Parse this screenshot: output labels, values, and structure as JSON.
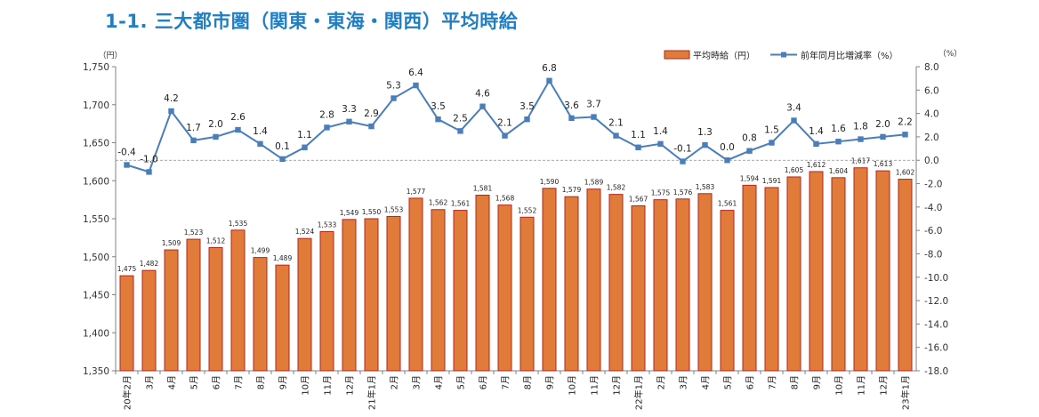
{
  "page_title": "1-1.  三大都市圏（関東・東海・関西）平均時給",
  "chart_data": {
    "type": "bar",
    "categories": [
      "20年2月",
      "3月",
      "4月",
      "5月",
      "6月",
      "7月",
      "8月",
      "9月",
      "10月",
      "11月",
      "12月",
      "21年1月",
      "2月",
      "3月",
      "4月",
      "5月",
      "6月",
      "7月",
      "8月",
      "9月",
      "10月",
      "11月",
      "12月",
      "22年1月",
      "2月",
      "3月",
      "4月",
      "5月",
      "6月",
      "7月",
      "8月",
      "9月",
      "10月",
      "11月",
      "12月",
      "23年1月"
    ],
    "series": [
      {
        "name": "平均時給（円）",
        "type": "bar",
        "axis": "left",
        "color": "#e07b39",
        "values": [
          1475,
          1482,
          1509,
          1523,
          1512,
          1535,
          1499,
          1489,
          1524,
          1533,
          1549,
          1550,
          1553,
          1577,
          1562,
          1561,
          1581,
          1568,
          1552,
          1590,
          1579,
          1589,
          1582,
          1567,
          1575,
          1576,
          1583,
          1561,
          1594,
          1591,
          1605,
          1612,
          1604,
          1617,
          1613,
          1602
        ]
      },
      {
        "name": "前年同月比増減率（%）",
        "type": "line",
        "axis": "right",
        "color": "#4a7ebb",
        "values": [
          -0.4,
          -1.0,
          4.2,
          1.7,
          2.0,
          2.6,
          1.4,
          0.1,
          1.1,
          2.8,
          3.3,
          2.9,
          5.3,
          6.4,
          3.5,
          2.5,
          4.6,
          2.1,
          3.5,
          6.8,
          3.6,
          3.7,
          2.1,
          1.1,
          1.4,
          -0.1,
          1.3,
          0.0,
          0.8,
          1.5,
          3.4,
          1.4,
          1.6,
          1.8,
          2.0,
          2.2
        ]
      }
    ],
    "y_left": {
      "unit": "（円）",
      "ylim": [
        1350,
        1750
      ],
      "ticks": [
        "1,350",
        "1,400",
        "1,450",
        "1,500",
        "1,550",
        "1,600",
        "1,650",
        "1,700",
        "1,750"
      ]
    },
    "y_right": {
      "unit": "（%）",
      "ylim": [
        -18,
        8
      ],
      "ticks": [
        "-18.0",
        "-16.0",
        "-14.0",
        "-12.0",
        "-10.0",
        "-8.0",
        "-6.0",
        "-4.0",
        "-2.0",
        "0.0",
        "2.0",
        "4.0",
        "6.0",
        "8.0"
      ]
    },
    "grid": false,
    "zero_line": "dashed",
    "legend_position": "top-right",
    "bar_labels": [
      "1,475",
      "1,482",
      "1,509",
      "1,523",
      "1,512",
      "1,535",
      "1,499",
      "1,489",
      "1,524",
      "1,533",
      "1,549",
      "1,550",
      "1,553",
      "1,577",
      "1,562",
      "1,561",
      "1,581",
      "1,568",
      "1,552",
      "1,590",
      "1,579",
      "1,589",
      "1,582",
      "1,567",
      "1,575",
      "1,576",
      "1,583",
      "1,561",
      "1,594",
      "1,591",
      "1,605",
      "1,612",
      "1,604",
      "1,617",
      "1,613",
      "1,602"
    ],
    "line_labels": [
      "-0.4",
      "-1.0",
      "4.2",
      "1.7",
      "2.0",
      "2.6",
      "1.4",
      "0.1",
      "1.1",
      "2.8",
      "3.3",
      "2.9",
      "5.3",
      "6.4",
      "3.5",
      "2.5",
      "4.6",
      "2.1",
      "3.5",
      "6.8",
      "3.6",
      "3.7",
      "2.1",
      "1.1",
      "1.4",
      "-0.1",
      "1.3",
      "0.0",
      "0.8",
      "1.5",
      "3.4",
      "1.4",
      "1.6",
      "1.8",
      "2.0",
      "2.2"
    ]
  }
}
